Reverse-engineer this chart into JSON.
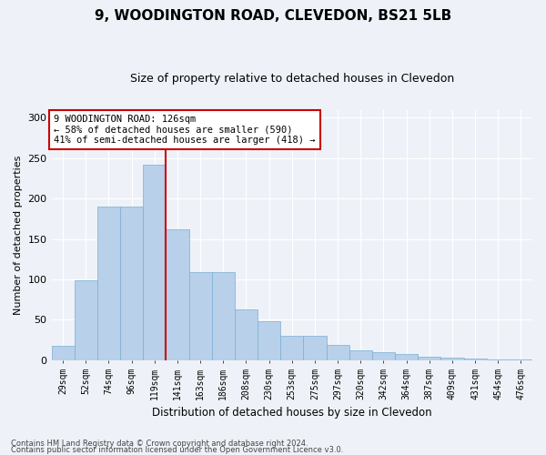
{
  "title": "9, WOODINGTON ROAD, CLEVEDON, BS21 5LB",
  "subtitle": "Size of property relative to detached houses in Clevedon",
  "xlabel": "Distribution of detached houses by size in Clevedon",
  "ylabel": "Number of detached properties",
  "categories": [
    "29sqm",
    "52sqm",
    "74sqm",
    "96sqm",
    "119sqm",
    "141sqm",
    "163sqm",
    "186sqm",
    "208sqm",
    "230sqm",
    "253sqm",
    "275sqm",
    "297sqm",
    "320sqm",
    "342sqm",
    "364sqm",
    "387sqm",
    "409sqm",
    "431sqm",
    "454sqm",
    "476sqm"
  ],
  "values": [
    18,
    99,
    190,
    190,
    242,
    162,
    109,
    109,
    63,
    48,
    30,
    30,
    19,
    12,
    10,
    8,
    4,
    3,
    2,
    1,
    1
  ],
  "bar_color": "#b8d0ea",
  "bar_edge_color": "#7aafd4",
  "vline_x_index": 4,
  "vline_color": "#cc0000",
  "annotation_text": "9 WOODINGTON ROAD: 126sqm\n← 58% of detached houses are smaller (590)\n41% of semi-detached houses are larger (418) →",
  "annotation_box_color": "#ffffff",
  "annotation_box_edge": "#cc0000",
  "bg_color": "#eef2f8",
  "grid_color": "#ffffff",
  "footer_line1": "Contains HM Land Registry data © Crown copyright and database right 2024.",
  "footer_line2": "Contains public sector information licensed under the Open Government Licence v3.0.",
  "ylim": [
    0,
    310
  ],
  "yticks": [
    0,
    50,
    100,
    150,
    200,
    250,
    300
  ]
}
